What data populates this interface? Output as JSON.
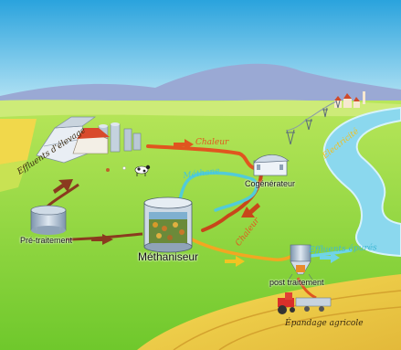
{
  "labels": {
    "effluents_elevage": "Effluents d'élevage",
    "chaleur_top": "Chaleur",
    "electricite": "Electricité",
    "methane": "Méthane",
    "cogenerateur": "Cogénérateur",
    "pretraitement": "Pré-traitement",
    "methaniseur": "Méthaniseur",
    "chaleur_side": "Chaleur",
    "effluents_epures": "Effluents épurés",
    "post_traitement": "post traitement",
    "epandage": "Épandage agricole"
  },
  "colors": {
    "sky": "#4fb9e6",
    "grass": "#8cd63a",
    "field": "#f2d24a",
    "river": "#7fd3ea",
    "heat_pipe": "#e2561f",
    "waste_pipe": "#8a3a1f",
    "methane_pipe": "#45c6d6",
    "electric_text": "#f0c020",
    "label_dark": "#3a2a10"
  }
}
